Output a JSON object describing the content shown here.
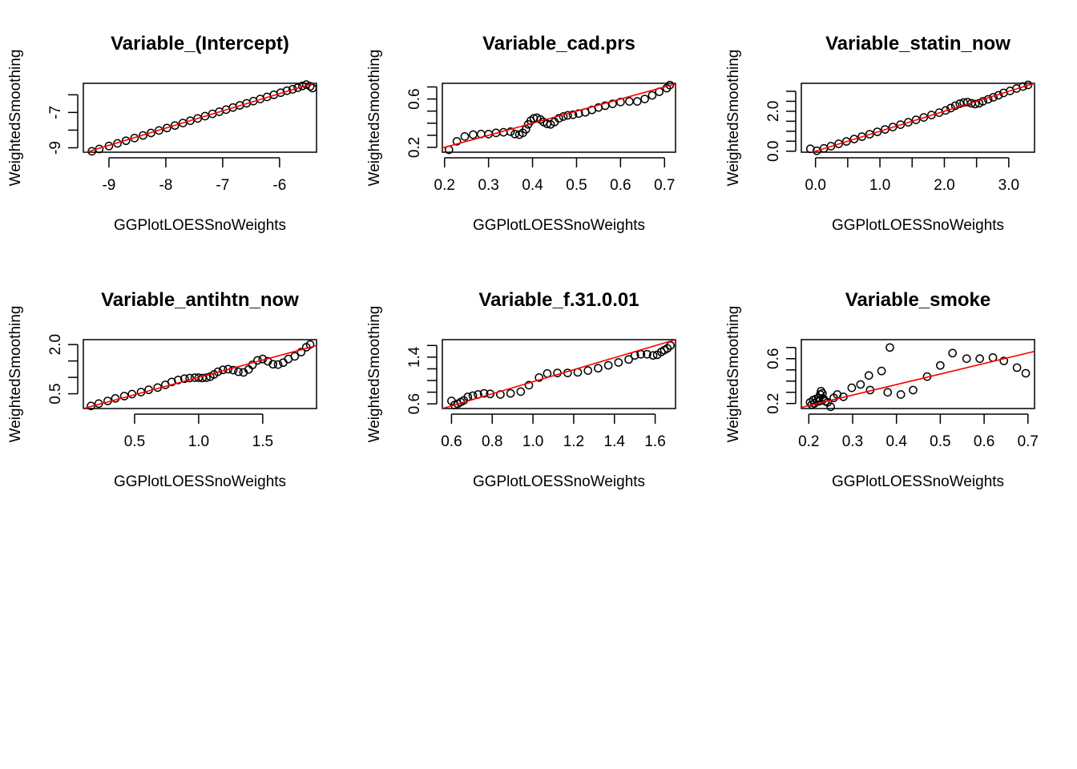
{
  "chart_data": [
    {
      "type": "scatter",
      "title": "Variable_(Intercept)",
      "xlabel": "GGPlotLOESSnoWeights",
      "ylabel": "WeightedSmoothing",
      "xlim": [
        -9.45,
        -5.35
      ],
      "ylim": [
        -9.25,
        -5.35
      ],
      "xticks": [
        {
          "v": -9,
          "label": "-9"
        },
        {
          "v": -8,
          "label": "-8"
        },
        {
          "v": -7,
          "label": "-7"
        },
        {
          "v": -6,
          "label": "-6"
        }
      ],
      "yticks": [
        {
          "v": -9,
          "label": "-9"
        },
        {
          "v": -8,
          "label": ""
        },
        {
          "v": -7,
          "label": "-7"
        },
        {
          "v": -6,
          "label": ""
        }
      ],
      "fit_line": {
        "color": "#ff0000",
        "points": [
          [
            -9.45,
            -9.3
          ],
          [
            -5.35,
            -5.3
          ]
        ]
      },
      "points": [
        [
          -9.3,
          -9.2
        ],
        [
          -9.17,
          -9.07
        ],
        [
          -9.0,
          -8.9
        ],
        [
          -8.85,
          -8.75
        ],
        [
          -8.7,
          -8.6
        ],
        [
          -8.55,
          -8.45
        ],
        [
          -8.4,
          -8.3
        ],
        [
          -8.26,
          -8.16
        ],
        [
          -8.12,
          -8.02
        ],
        [
          -7.98,
          -7.88
        ],
        [
          -7.84,
          -7.74
        ],
        [
          -7.7,
          -7.6
        ],
        [
          -7.57,
          -7.47
        ],
        [
          -7.44,
          -7.34
        ],
        [
          -7.31,
          -7.21
        ],
        [
          -7.18,
          -7.08
        ],
        [
          -7.06,
          -6.96
        ],
        [
          -6.94,
          -6.84
        ],
        [
          -6.82,
          -6.72
        ],
        [
          -6.7,
          -6.6
        ],
        [
          -6.58,
          -6.48
        ],
        [
          -6.46,
          -6.36
        ],
        [
          -6.34,
          -6.24
        ],
        [
          -6.22,
          -6.12
        ],
        [
          -6.1,
          -6.0
        ],
        [
          -5.98,
          -5.88
        ],
        [
          -5.87,
          -5.77
        ],
        [
          -5.77,
          -5.69
        ],
        [
          -5.68,
          -5.6
        ],
        [
          -5.6,
          -5.5
        ],
        [
          -5.53,
          -5.42
        ],
        [
          -5.46,
          -5.52
        ],
        [
          -5.42,
          -5.62
        ]
      ]
    },
    {
      "type": "scatter",
      "title": "Variable_cad.prs",
      "xlabel": "GGPlotLOESSnoWeights",
      "ylabel": "WeightedSmoothing",
      "xlim": [
        0.195,
        0.725
      ],
      "ylim": [
        0.16,
        0.73
      ],
      "xticks": [
        {
          "v": 0.2,
          "label": "0.2"
        },
        {
          "v": 0.3,
          "label": "0.3"
        },
        {
          "v": 0.4,
          "label": "0.4"
        },
        {
          "v": 0.5,
          "label": "0.5"
        },
        {
          "v": 0.6,
          "label": "0.6"
        },
        {
          "v": 0.7,
          "label": "0.7"
        }
      ],
      "yticks": [
        {
          "v": 0.2,
          "label": "0.2"
        },
        {
          "v": 0.3,
          "label": ""
        },
        {
          "v": 0.4,
          "label": ""
        },
        {
          "v": 0.5,
          "label": ""
        },
        {
          "v": 0.6,
          "label": "0.6"
        },
        {
          "v": 0.7,
          "label": ""
        }
      ],
      "fit_line": {
        "color": "#ff0000",
        "points": [
          [
            0.195,
            0.195
          ],
          [
            0.725,
            0.725
          ]
        ]
      },
      "points": [
        [
          0.21,
          0.18
        ],
        [
          0.228,
          0.25
        ],
        [
          0.246,
          0.29
        ],
        [
          0.265,
          0.305
        ],
        [
          0.283,
          0.31
        ],
        [
          0.3,
          0.31
        ],
        [
          0.317,
          0.32
        ],
        [
          0.334,
          0.325
        ],
        [
          0.35,
          0.33
        ],
        [
          0.36,
          0.31
        ],
        [
          0.37,
          0.305
        ],
        [
          0.378,
          0.32
        ],
        [
          0.385,
          0.35
        ],
        [
          0.39,
          0.39
        ],
        [
          0.396,
          0.42
        ],
        [
          0.403,
          0.44
        ],
        [
          0.41,
          0.445
        ],
        [
          0.418,
          0.43
        ],
        [
          0.425,
          0.41
        ],
        [
          0.433,
          0.395
        ],
        [
          0.441,
          0.39
        ],
        [
          0.45,
          0.41
        ],
        [
          0.46,
          0.44
        ],
        [
          0.47,
          0.455
        ],
        [
          0.48,
          0.465
        ],
        [
          0.492,
          0.47
        ],
        [
          0.505,
          0.48
        ],
        [
          0.52,
          0.49
        ],
        [
          0.535,
          0.51
        ],
        [
          0.55,
          0.53
        ],
        [
          0.565,
          0.545
        ],
        [
          0.582,
          0.56
        ],
        [
          0.6,
          0.575
        ],
        [
          0.62,
          0.58
        ],
        [
          0.638,
          0.58
        ],
        [
          0.655,
          0.6
        ],
        [
          0.672,
          0.63
        ],
        [
          0.688,
          0.66
        ],
        [
          0.705,
          0.69
        ],
        [
          0.712,
          0.715
        ]
      ]
    },
    {
      "type": "scatter",
      "title": "Variable_statin_now",
      "xlabel": "GGPlotLOESSnoWeights",
      "ylabel": "WeightedSmoothing",
      "xlim": [
        -0.22,
        3.4
      ],
      "ylim": [
        -0.05,
        3.4
      ],
      "xticks": [
        {
          "v": 0,
          "label": "0.0"
        },
        {
          "v": 0.5,
          "label": ""
        },
        {
          "v": 1,
          "label": "1.0"
        },
        {
          "v": 1.5,
          "label": ""
        },
        {
          "v": 2,
          "label": "2.0"
        },
        {
          "v": 2.5,
          "label": ""
        },
        {
          "v": 3,
          "label": "3.0"
        }
      ],
      "yticks": [
        {
          "v": 0,
          "label": "0.0"
        },
        {
          "v": 0.5,
          "label": ""
        },
        {
          "v": 1,
          "label": ""
        },
        {
          "v": 1.5,
          "label": ""
        },
        {
          "v": 2,
          "label": "2.0"
        },
        {
          "v": 2.5,
          "label": ""
        },
        {
          "v": 3,
          "label": ""
        }
      ],
      "fit_line": {
        "color": "#ff0000",
        "points": [
          [
            -0.22,
            -0.22
          ],
          [
            3.4,
            3.4
          ]
        ]
      },
      "points": [
        [
          -0.08,
          0.12
        ],
        [
          0.02,
          0.02
        ],
        [
          0.13,
          0.14
        ],
        [
          0.24,
          0.25
        ],
        [
          0.36,
          0.37
        ],
        [
          0.48,
          0.49
        ],
        [
          0.6,
          0.61
        ],
        [
          0.72,
          0.73
        ],
        [
          0.84,
          0.85
        ],
        [
          0.96,
          0.97
        ],
        [
          1.08,
          1.09
        ],
        [
          1.2,
          1.21
        ],
        [
          1.32,
          1.33
        ],
        [
          1.44,
          1.45
        ],
        [
          1.56,
          1.57
        ],
        [
          1.68,
          1.69
        ],
        [
          1.8,
          1.81
        ],
        [
          1.92,
          1.93
        ],
        [
          2.02,
          2.04
        ],
        [
          2.1,
          2.16
        ],
        [
          2.17,
          2.28
        ],
        [
          2.24,
          2.38
        ],
        [
          2.3,
          2.44
        ],
        [
          2.36,
          2.46
        ],
        [
          2.42,
          2.4
        ],
        [
          2.48,
          2.36
        ],
        [
          2.54,
          2.4
        ],
        [
          2.6,
          2.5
        ],
        [
          2.68,
          2.6
        ],
        [
          2.76,
          2.7
        ],
        [
          2.84,
          2.8
        ],
        [
          2.92,
          2.92
        ],
        [
          3.02,
          3.02
        ],
        [
          3.12,
          3.14
        ],
        [
          3.22,
          3.24
        ],
        [
          3.3,
          3.32
        ]
      ]
    },
    {
      "type": "scatter",
      "title": "Variable_antihtn_now",
      "xlabel": "GGPlotLOESSnoWeights",
      "ylabel": "WeightedSmoothing",
      "xlim": [
        0.1,
        1.92
      ],
      "ylim": [
        0.05,
        2.15
      ],
      "xticks": [
        {
          "v": 0.5,
          "label": "0.5"
        },
        {
          "v": 1.0,
          "label": "1.0"
        },
        {
          "v": 1.5,
          "label": "1.5"
        }
      ],
      "yticks": [
        {
          "v": 0.5,
          "label": "0.5"
        },
        {
          "v": 1.0,
          "label": ""
        },
        {
          "v": 1.5,
          "label": ""
        },
        {
          "v": 2.0,
          "label": "2.0"
        }
      ],
      "fit_line": {
        "color": "#ff0000",
        "points": [
          [
            0.1,
            0.05
          ],
          [
            1.92,
            1.97
          ]
        ]
      },
      "points": [
        [
          0.16,
          0.13
        ],
        [
          0.22,
          0.2
        ],
        [
          0.29,
          0.28
        ],
        [
          0.35,
          0.36
        ],
        [
          0.42,
          0.43
        ],
        [
          0.48,
          0.49
        ],
        [
          0.55,
          0.55
        ],
        [
          0.61,
          0.62
        ],
        [
          0.68,
          0.69
        ],
        [
          0.74,
          0.77
        ],
        [
          0.79,
          0.86
        ],
        [
          0.84,
          0.92
        ],
        [
          0.89,
          0.96
        ],
        [
          0.93,
          0.98
        ],
        [
          0.97,
          0.99
        ],
        [
          1.0,
          0.99
        ],
        [
          1.03,
          0.98
        ],
        [
          1.06,
          0.99
        ],
        [
          1.09,
          1.02
        ],
        [
          1.12,
          1.09
        ],
        [
          1.15,
          1.17
        ],
        [
          1.19,
          1.23
        ],
        [
          1.23,
          1.25
        ],
        [
          1.27,
          1.22
        ],
        [
          1.31,
          1.17
        ],
        [
          1.35,
          1.15
        ],
        [
          1.39,
          1.24
        ],
        [
          1.42,
          1.38
        ],
        [
          1.46,
          1.52
        ],
        [
          1.5,
          1.56
        ],
        [
          1.54,
          1.49
        ],
        [
          1.58,
          1.4
        ],
        [
          1.62,
          1.39
        ],
        [
          1.66,
          1.45
        ],
        [
          1.7,
          1.56
        ],
        [
          1.75,
          1.64
        ],
        [
          1.8,
          1.77
        ],
        [
          1.84,
          1.92
        ],
        [
          1.87,
          2.0
        ]
      ]
    },
    {
      "type": "scatter",
      "title": "Variable_f.31.0.01",
      "xlabel": "GGPlotLOESSnoWeights",
      "ylabel": "WeightedSmoothing",
      "xlim": [
        0.555,
        1.7
      ],
      "ylim": [
        0.52,
        1.7
      ],
      "xticks": [
        {
          "v": 0.6,
          "label": "0.6"
        },
        {
          "v": 0.8,
          "label": "0.8"
        },
        {
          "v": 1.0,
          "label": "1.0"
        },
        {
          "v": 1.2,
          "label": "1.2"
        },
        {
          "v": 1.4,
          "label": "1.4"
        },
        {
          "v": 1.6,
          "label": "1.6"
        }
      ],
      "yticks": [
        {
          "v": 0.6,
          "label": "0.6"
        },
        {
          "v": 0.8,
          "label": ""
        },
        {
          "v": 1.0,
          "label": ""
        },
        {
          "v": 1.2,
          "label": ""
        },
        {
          "v": 1.4,
          "label": "1.4"
        },
        {
          "v": 1.6,
          "label": ""
        }
      ],
      "fit_line": {
        "color": "#ff0000",
        "points": [
          [
            0.555,
            0.52
          ],
          [
            1.7,
            1.7
          ]
        ]
      },
      "points": [
        [
          0.6,
          0.65
        ],
        [
          0.615,
          0.58
        ],
        [
          0.63,
          0.6
        ],
        [
          0.645,
          0.63
        ],
        [
          0.66,
          0.66
        ],
        [
          0.68,
          0.72
        ],
        [
          0.705,
          0.74
        ],
        [
          0.73,
          0.76
        ],
        [
          0.76,
          0.78
        ],
        [
          0.79,
          0.77
        ],
        [
          0.84,
          0.76
        ],
        [
          0.89,
          0.78
        ],
        [
          0.94,
          0.81
        ],
        [
          0.98,
          0.92
        ],
        [
          1.03,
          1.05
        ],
        [
          1.07,
          1.12
        ],
        [
          1.12,
          1.13
        ],
        [
          1.17,
          1.13
        ],
        [
          1.22,
          1.14
        ],
        [
          1.27,
          1.17
        ],
        [
          1.32,
          1.21
        ],
        [
          1.37,
          1.26
        ],
        [
          1.42,
          1.31
        ],
        [
          1.47,
          1.36
        ],
        [
          1.5,
          1.43
        ],
        [
          1.53,
          1.45
        ],
        [
          1.56,
          1.45
        ],
        [
          1.59,
          1.43
        ],
        [
          1.61,
          1.44
        ],
        [
          1.63,
          1.49
        ],
        [
          1.645,
          1.52
        ],
        [
          1.66,
          1.55
        ],
        [
          1.675,
          1.6
        ]
      ]
    },
    {
      "type": "scatter",
      "title": "Variable_smoke",
      "xlabel": "GGPlotLOESSnoWeights",
      "ylabel": "WeightedSmoothing",
      "xlim": [
        0.183,
        0.715
      ],
      "ylim": [
        0.155,
        0.77
      ],
      "xticks": [
        {
          "v": 0.2,
          "label": "0.2"
        },
        {
          "v": 0.3,
          "label": "0.3"
        },
        {
          "v": 0.4,
          "label": "0.4"
        },
        {
          "v": 0.5,
          "label": "0.5"
        },
        {
          "v": 0.6,
          "label": "0.6"
        },
        {
          "v": 0.7,
          "label": "0.7"
        }
      ],
      "yticks": [
        {
          "v": 0.2,
          "label": "0.2"
        },
        {
          "v": 0.3,
          "label": ""
        },
        {
          "v": 0.4,
          "label": ""
        },
        {
          "v": 0.5,
          "label": ""
        },
        {
          "v": 0.6,
          "label": "0.6"
        },
        {
          "v": 0.7,
          "label": ""
        }
      ],
      "fit_line": {
        "color": "#ff0000",
        "points": [
          [
            0.183,
            0.165
          ],
          [
            0.715,
            0.665
          ]
        ]
      },
      "points": [
        [
          0.203,
          0.21
        ],
        [
          0.207,
          0.19
        ],
        [
          0.21,
          0.23
        ],
        [
          0.213,
          0.2
        ],
        [
          0.216,
          0.24
        ],
        [
          0.219,
          0.22
        ],
        [
          0.222,
          0.25
        ],
        [
          0.224,
          0.22
        ],
        [
          0.226,
          0.28
        ],
        [
          0.228,
          0.31
        ],
        [
          0.231,
          0.29
        ],
        [
          0.234,
          0.24
        ],
        [
          0.238,
          0.22
        ],
        [
          0.243,
          0.21
        ],
        [
          0.25,
          0.17
        ],
        [
          0.257,
          0.25
        ],
        [
          0.265,
          0.28
        ],
        [
          0.279,
          0.26
        ],
        [
          0.298,
          0.34
        ],
        [
          0.318,
          0.37
        ],
        [
          0.337,
          0.45
        ],
        [
          0.34,
          0.32
        ],
        [
          0.366,
          0.49
        ],
        [
          0.38,
          0.3
        ],
        [
          0.385,
          0.7
        ],
        [
          0.41,
          0.28
        ],
        [
          0.438,
          0.32
        ],
        [
          0.47,
          0.44
        ],
        [
          0.5,
          0.54
        ],
        [
          0.528,
          0.65
        ],
        [
          0.56,
          0.6
        ],
        [
          0.59,
          0.6
        ],
        [
          0.62,
          0.61
        ],
        [
          0.645,
          0.58
        ],
        [
          0.675,
          0.52
        ],
        [
          0.695,
          0.47
        ]
      ]
    }
  ]
}
